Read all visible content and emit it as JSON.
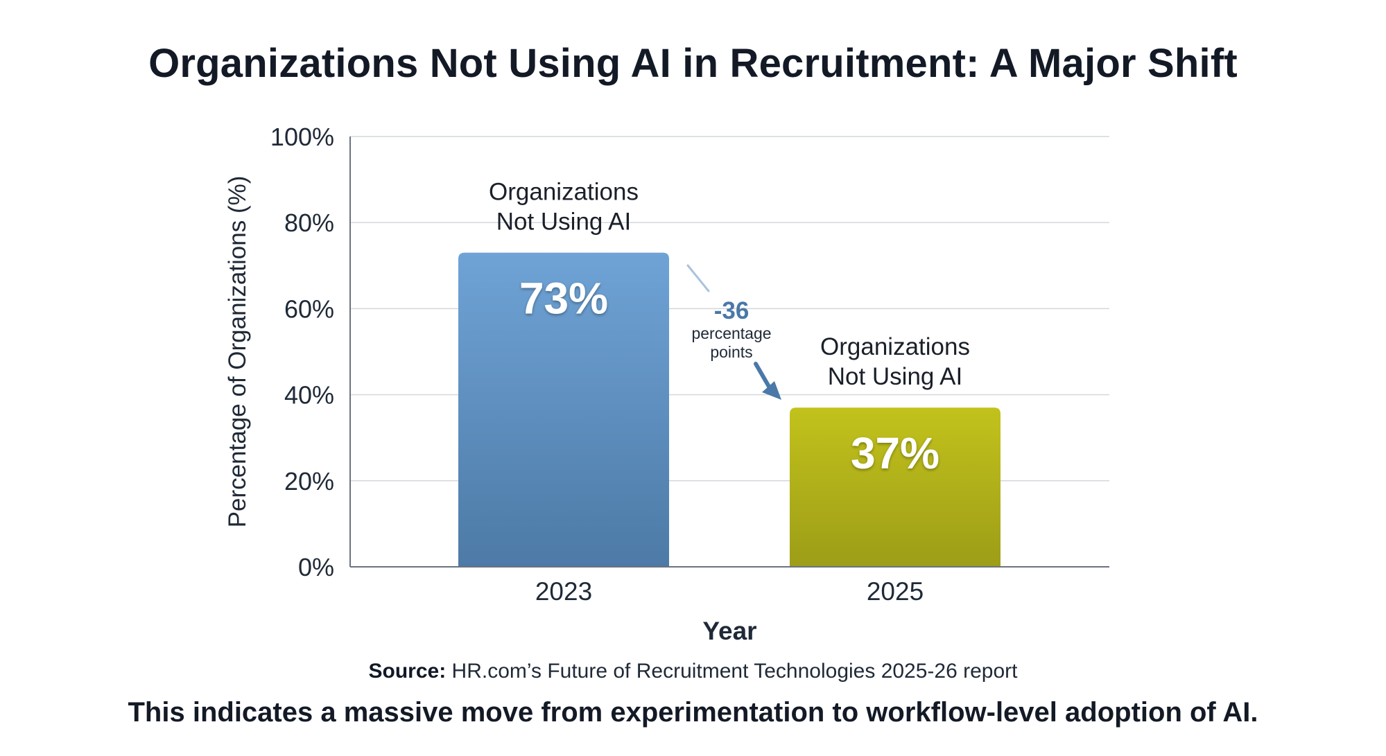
{
  "chart_data": {
    "type": "bar",
    "title": "Organizations Not Using AI in Recruitment: A Major Shift",
    "categories": [
      "2023",
      "2025"
    ],
    "series": [
      {
        "values": [
          73,
          37
        ],
        "colors": [
          "#5a8cbf",
          "#b4b41a"
        ]
      }
    ],
    "bar_labels": [
      [
        "Organizations",
        "Not Using AI"
      ],
      [
        "Organizations",
        "Not Using AI"
      ]
    ],
    "value_labels": [
      "73%",
      "37%"
    ],
    "xlabel": "Year",
    "ylabel": "Percentage of Organizations (%)",
    "ylim": [
      0,
      100
    ],
    "yticks": [
      0,
      20,
      40,
      60,
      80,
      100
    ],
    "ytick_labels": [
      "0%",
      "20%",
      "40%",
      "60%",
      "80%",
      "100%"
    ],
    "grid": true,
    "annotation": {
      "value": "-36",
      "text": [
        "percentage",
        "points"
      ],
      "color": "#4a78a8"
    }
  },
  "source": {
    "label": "Source:",
    "text": "HR.com’s Future of Recruitment Technologies 2025-26 report"
  },
  "footer": "This indicates a massive move from experimentation to workflow-level adoption of AI."
}
